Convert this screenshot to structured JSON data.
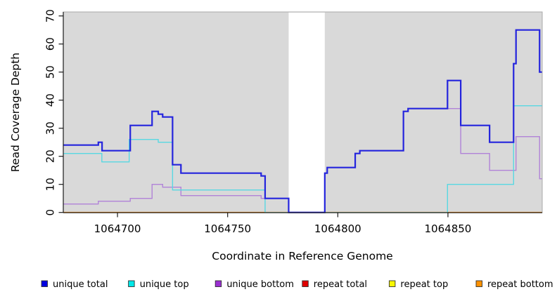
{
  "chart_data": {
    "type": "line",
    "subtype": "step-coverage-plot",
    "title": "",
    "xlabel": "Coordinate in Reference Genome",
    "ylabel": "Read Coverage Depth",
    "x_range": [
      1064675.4,
      1064892.8
    ],
    "y_range": [
      0,
      70
    ],
    "x_ticks": [
      "1064700",
      "1064750",
      "1064800",
      "1064850"
    ],
    "x_tick_values": [
      1064700,
      1064750,
      1064800,
      1064850
    ],
    "y_ticks": [
      0,
      10,
      20,
      30,
      40,
      50,
      60,
      70
    ],
    "plot_bg": "#d9d9d9",
    "grid": false,
    "legend_position": "bottom",
    "gap_region": {
      "x_start": 1064777.7,
      "x_end": 1064794.1,
      "fill": "#ffffff"
    },
    "baseline_overlays": [
      {
        "x_start": 1064767.0,
        "x_end": 1064849.8,
        "y": 0,
        "color": "#9ac79a"
      }
    ],
    "series": [
      {
        "name": "unique total",
        "color": "#2424dd",
        "lwd": 2.2,
        "steps": [
          [
            1064675.4,
            24
          ],
          [
            1064691.3,
            25
          ],
          [
            1064693.0,
            22
          ],
          [
            1064705.8,
            31
          ],
          [
            1064715.7,
            36
          ],
          [
            1064718.5,
            35
          ],
          [
            1064720.5,
            34
          ],
          [
            1064725.0,
            17
          ],
          [
            1064728.8,
            14
          ],
          [
            1064765.2,
            13
          ],
          [
            1064767.0,
            5
          ],
          [
            1064777.7,
            0
          ],
          [
            1064794.1,
            14
          ],
          [
            1064795.2,
            16
          ],
          [
            1064807.9,
            21
          ],
          [
            1064810.0,
            22
          ],
          [
            1064829.8,
            36
          ],
          [
            1064831.9,
            37
          ],
          [
            1064849.8,
            47
          ],
          [
            1064855.8,
            31
          ],
          [
            1064868.9,
            25
          ],
          [
            1064879.8,
            53
          ],
          [
            1064880.9,
            65
          ],
          [
            1064891.6,
            50
          ]
        ]
      },
      {
        "name": "unique top",
        "color": "#58d8e2",
        "lwd": 1.4,
        "steps": [
          [
            1064675.4,
            21
          ],
          [
            1064692.9,
            18
          ],
          [
            1064705.3,
            26
          ],
          [
            1064718.5,
            25
          ],
          [
            1064725.0,
            8
          ],
          [
            1064767.0,
            0
          ],
          [
            1064849.8,
            10
          ],
          [
            1064879.8,
            38
          ]
        ]
      },
      {
        "name": "unique bottom",
        "color": "#b183d8",
        "lwd": 1.4,
        "steps": [
          [
            1064675.4,
            3
          ],
          [
            1064691.3,
            4
          ],
          [
            1064705.8,
            5
          ],
          [
            1064715.7,
            10
          ],
          [
            1064720.5,
            9
          ],
          [
            1064728.8,
            6
          ],
          [
            1064765.2,
            5
          ],
          [
            1064777.7,
            0
          ],
          [
            1064794.1,
            14
          ],
          [
            1064795.2,
            16
          ],
          [
            1064807.9,
            21
          ],
          [
            1064810.0,
            22
          ],
          [
            1064829.8,
            36
          ],
          [
            1064831.9,
            37
          ],
          [
            1064855.8,
            21
          ],
          [
            1064868.9,
            15
          ],
          [
            1064880.9,
            27
          ],
          [
            1064891.6,
            12
          ]
        ]
      },
      {
        "name": "repeat total",
        "color": "#e00000",
        "lwd": 1.4,
        "steps": [
          [
            1064675.4,
            0
          ]
        ]
      },
      {
        "name": "repeat top",
        "color": "#f8f800",
        "lwd": 1.4,
        "steps": [
          [
            1064675.4,
            0
          ]
        ]
      },
      {
        "name": "repeat bottom",
        "color": "#ff8c00",
        "lwd": 1.6,
        "steps": [
          [
            1064675.4,
            0
          ]
        ]
      }
    ]
  },
  "legend": {
    "items": [
      {
        "label": "unique total",
        "color": "#0000e0"
      },
      {
        "label": "unique top",
        "color": "#00e8e8"
      },
      {
        "label": "unique bottom",
        "color": "#9a2fd1"
      },
      {
        "label": "repeat total",
        "color": "#e00000"
      },
      {
        "label": "repeat top",
        "color": "#f8f800"
      },
      {
        "label": "repeat bottom",
        "color": "#ff9100"
      }
    ]
  }
}
